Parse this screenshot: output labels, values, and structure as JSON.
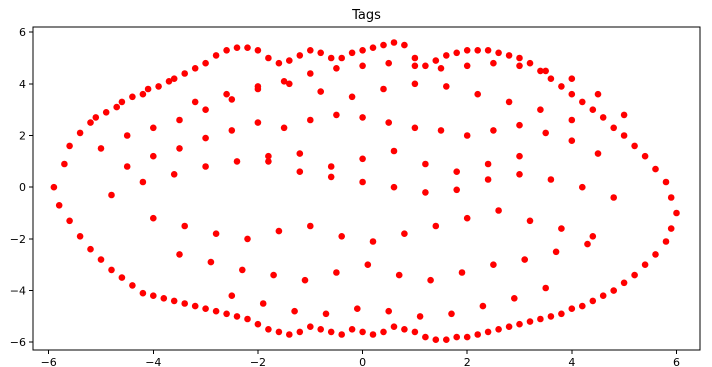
{
  "chart_data": {
    "type": "scatter",
    "title": "Tags",
    "xlabel": "",
    "ylabel": "",
    "xlim": [
      -6.3,
      6.45
    ],
    "ylim": [
      -6.3,
      6.2
    ],
    "xticks": [
      -6,
      -4,
      -2,
      0,
      2,
      4,
      6
    ],
    "yticks": [
      -6,
      -4,
      -2,
      0,
      2,
      4,
      6
    ],
    "xtick_labels": [
      "−6",
      "−4",
      "−2",
      "0",
      "2",
      "4",
      "6"
    ],
    "ytick_labels": [
      "−6",
      "−4",
      "−2",
      "0",
      "2",
      "4",
      "6"
    ],
    "grid": false,
    "legend": false,
    "point_color": "#ff0000",
    "series": [
      {
        "x": [
          -5.9,
          -5.7,
          -5.6,
          -5.4,
          -5.2,
          -5.1,
          -4.9,
          -4.7,
          -4.6,
          -4.4,
          -4.2,
          -4.1,
          -3.9,
          -3.7,
          -3.6,
          -3.4,
          -3.2,
          -3.0,
          -2.8,
          -2.6,
          -2.4,
          -2.2,
          -2.0,
          -1.8,
          -1.6,
          -1.4,
          -1.2,
          -1.0,
          -0.8,
          -0.6,
          -0.4,
          -0.2,
          0.0,
          0.2,
          0.4,
          0.6,
          0.8,
          1.0,
          1.2,
          1.4,
          1.6,
          1.8,
          2.0,
          2.2,
          2.4,
          2.6,
          2.8,
          3.0,
          3.2,
          3.4,
          3.6,
          3.8,
          4.0,
          4.2,
          4.4,
          4.6,
          4.8,
          5.0,
          5.2,
          5.4,
          5.6,
          5.8,
          5.9,
          6.0,
          5.9,
          5.8,
          5.6,
          5.4,
          5.2,
          5.0,
          4.8,
          4.6,
          4.4,
          4.2,
          4.0,
          3.8,
          3.6,
          3.4,
          3.2,
          3.0,
          2.8,
          2.6,
          2.4,
          2.2,
          2.0,
          1.8,
          1.6,
          1.4,
          1.2,
          1.0,
          0.8,
          0.6,
          0.4,
          0.2,
          0.0,
          -0.2,
          -0.4,
          -0.6,
          -0.8,
          -1.0,
          -1.2,
          -1.4,
          -1.6,
          -1.8,
          -2.0,
          -2.2,
          -2.4,
          -2.6,
          -2.8,
          -3.0,
          -3.2,
          -3.4,
          -3.6,
          -3.8,
          -4.0,
          -4.2,
          -4.4,
          -4.6,
          -4.8,
          -5.0,
          -5.2,
          -5.4,
          -5.6,
          -5.8,
          -5.0,
          -4.5,
          -4.0,
          -3.5,
          -3.0,
          -2.5,
          -2.0,
          -1.5,
          -1.0,
          -0.5,
          0.0,
          0.5,
          1.0,
          1.5,
          2.0,
          2.5,
          3.0,
          3.5,
          4.0,
          4.5,
          5.0,
          -4.5,
          -4.0,
          -3.5,
          -3.0,
          -2.5,
          -2.0,
          -1.5,
          -1.0,
          -0.5,
          0.0,
          0.5,
          1.0,
          1.5,
          2.0,
          2.5,
          3.0,
          3.5,
          4.0,
          4.5,
          -4.8,
          -4.2,
          -3.6,
          -3.0,
          -2.4,
          -1.8,
          -1.2,
          -0.6,
          0.0,
          0.6,
          1.2,
          1.8,
          2.4,
          3.0,
          3.6,
          4.2,
          4.8,
          -4.0,
          -3.4,
          -2.8,
          -2.2,
          -1.6,
          -1.0,
          -0.4,
          0.2,
          0.8,
          1.4,
          2.0,
          2.6,
          3.2,
          3.8,
          4.4,
          -3.5,
          -2.9,
          -2.3,
          -1.7,
          -1.1,
          -0.5,
          0.1,
          0.7,
          1.3,
          1.9,
          2.5,
          3.1,
          3.7,
          4.3,
          -2.5,
          -1.9,
          -1.3,
          -0.7,
          -0.1,
          0.5,
          1.1,
          1.7,
          2.3,
          2.9,
          3.5,
          -3.2,
          -2.6,
          -2.0,
          -1.4,
          -0.8,
          -0.2,
          0.4,
          1.0,
          1.6,
          2.2,
          2.8,
          3.4,
          4.0,
          -1.8,
          -1.2,
          -0.6,
          0.0,
          0.6,
          1.2,
          1.8,
          2.4,
          3.0
        ],
        "y": [
          0.0,
          0.9,
          1.6,
          2.1,
          2.5,
          2.7,
          2.9,
          3.1,
          3.3,
          3.5,
          3.6,
          3.8,
          3.9,
          4.1,
          4.2,
          4.4,
          4.6,
          4.8,
          5.1,
          5.3,
          5.4,
          5.4,
          5.3,
          5.0,
          4.8,
          4.9,
          5.1,
          5.3,
          5.2,
          5.0,
          5.0,
          5.2,
          5.3,
          5.4,
          5.5,
          5.6,
          5.5,
          5.0,
          4.7,
          4.9,
          5.1,
          5.2,
          5.3,
          5.3,
          5.3,
          5.2,
          5.1,
          5.0,
          4.8,
          4.5,
          4.2,
          3.9,
          3.6,
          3.3,
          3.0,
          2.7,
          2.3,
          2.0,
          1.6,
          1.2,
          0.7,
          0.2,
          -0.4,
          -1.0,
          -1.6,
          -2.1,
          -2.6,
          -3.0,
          -3.4,
          -3.7,
          -4.0,
          -4.2,
          -4.4,
          -4.6,
          -4.7,
          -4.9,
          -5.0,
          -5.1,
          -5.2,
          -5.3,
          -5.4,
          -5.5,
          -5.6,
          -5.7,
          -5.8,
          -5.8,
          -5.9,
          -5.9,
          -5.8,
          -5.6,
          -5.5,
          -5.4,
          -5.6,
          -5.7,
          -5.6,
          -5.5,
          -5.7,
          -5.6,
          -5.5,
          -5.4,
          -5.6,
          -5.7,
          -5.6,
          -5.5,
          -5.3,
          -5.1,
          -5.0,
          -4.9,
          -4.8,
          -4.7,
          -4.6,
          -4.5,
          -4.4,
          -4.3,
          -4.2,
          -4.1,
          -3.8,
          -3.5,
          -3.2,
          -2.8,
          -2.4,
          -1.9,
          -1.3,
          -0.7,
          1.5,
          2.0,
          2.3,
          2.6,
          3.0,
          3.4,
          3.8,
          4.1,
          4.4,
          4.6,
          4.7,
          4.8,
          4.7,
          4.6,
          4.7,
          4.8,
          4.7,
          4.5,
          4.2,
          3.6,
          2.8,
          0.8,
          1.2,
          1.5,
          1.9,
          2.2,
          2.5,
          2.3,
          2.6,
          2.8,
          2.7,
          2.5,
          2.3,
          2.2,
          2.0,
          2.2,
          2.4,
          2.1,
          1.8,
          1.3,
          -0.3,
          0.2,
          0.5,
          0.8,
          1.0,
          1.2,
          0.6,
          0.4,
          0.2,
          0.0,
          -0.2,
          -0.1,
          0.3,
          0.5,
          0.3,
          0.0,
          -0.4,
          -1.2,
          -1.5,
          -1.8,
          -2.0,
          -1.7,
          -1.5,
          -1.9,
          -2.1,
          -1.8,
          -1.5,
          -1.2,
          -0.9,
          -1.3,
          -1.6,
          -1.9,
          -2.6,
          -2.9,
          -3.2,
          -3.4,
          -3.6,
          -3.3,
          -3.0,
          -3.4,
          -3.6,
          -3.3,
          -3.0,
          -2.8,
          -2.5,
          -2.2,
          -4.2,
          -4.5,
          -4.8,
          -4.9,
          -4.7,
          -4.8,
          -5.0,
          -4.9,
          -4.6,
          -4.3,
          -3.9,
          3.3,
          3.6,
          3.9,
          4.0,
          3.7,
          3.5,
          3.8,
          4.0,
          3.9,
          3.6,
          3.3,
          3.0,
          2.6,
          1.0,
          1.3,
          0.8,
          1.1,
          1.4,
          0.9,
          0.6,
          0.9,
          1.2
        ]
      }
    ]
  }
}
